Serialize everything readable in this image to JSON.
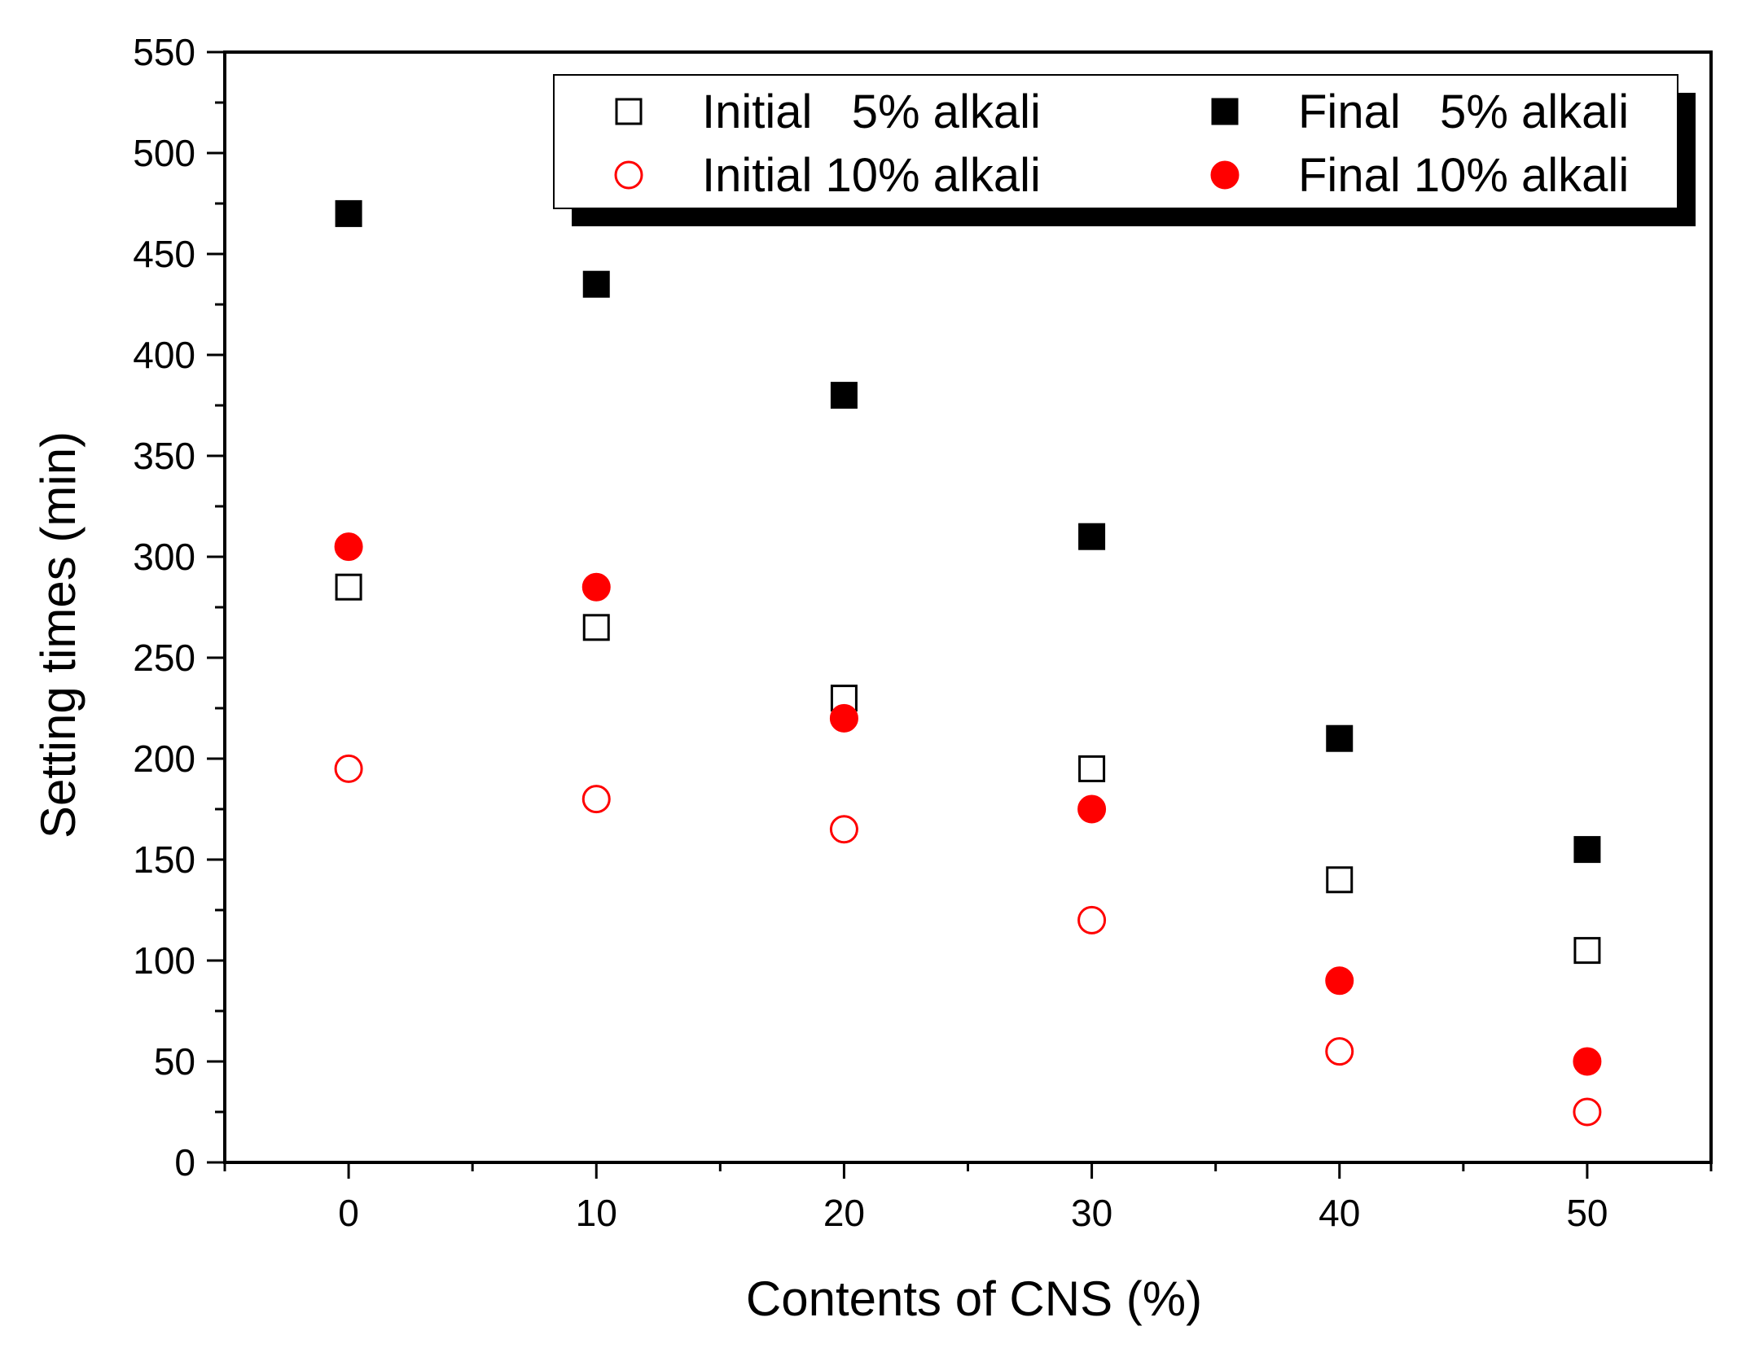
{
  "chart_data": {
    "type": "scatter",
    "xlabel": "Contents of CNS (%)",
    "ylabel": "Setting times (min)",
    "x": [
      0,
      10,
      20,
      30,
      40,
      50
    ],
    "xlim": [
      -5,
      55
    ],
    "ylim": [
      0,
      550
    ],
    "x_ticks": [
      0,
      10,
      20,
      30,
      40,
      50
    ],
    "y_ticks": [
      0,
      50,
      100,
      150,
      200,
      250,
      300,
      350,
      400,
      450,
      500,
      550
    ],
    "grid": false,
    "legend_position": "top-right",
    "series": [
      {
        "name": "Initial   5% alkali",
        "marker": "square",
        "filled": false,
        "color": "#000000",
        "values": [
          285,
          265,
          230,
          195,
          140,
          105
        ]
      },
      {
        "name": "Initial 10% alkali",
        "marker": "circle",
        "filled": false,
        "color": "#ff0000",
        "values": [
          195,
          180,
          165,
          120,
          55,
          25
        ]
      },
      {
        "name": "Final   5% alkali",
        "marker": "square",
        "filled": true,
        "color": "#000000",
        "values": [
          470,
          435,
          380,
          310,
          210,
          155
        ]
      },
      {
        "name": "Final 10% alkali",
        "marker": "circle",
        "filled": true,
        "color": "#ff0000",
        "values": [
          305,
          285,
          220,
          175,
          90,
          50
        ]
      }
    ]
  }
}
